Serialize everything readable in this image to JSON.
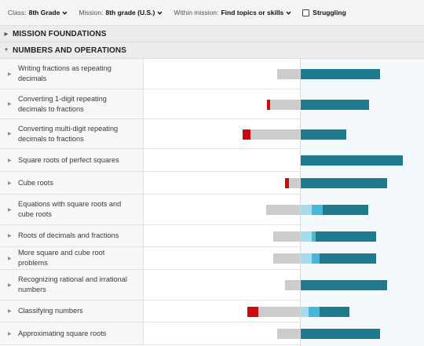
{
  "filters": {
    "class_label": "Class:",
    "class_value": "8th Grade",
    "mission_label": "Mission:",
    "mission_value": "8th grade (U.S.)",
    "within_label": "Within mission:",
    "within_value": "Find topics or skills",
    "struggling_label": "Struggling"
  },
  "sections": [
    {
      "label": "MISSION FOUNDATIONS",
      "expanded": false
    },
    {
      "label": "NUMBERS AND OPERATIONS",
      "expanded": true
    }
  ],
  "colors": {
    "struggling": "#cc0c0c",
    "not_started": "#cccccc",
    "practiced": "#a3dcec",
    "level_two": "#46b8db",
    "mastered": "#1e7a8c"
  },
  "rows": [
    {
      "label": "Writing fractions as repeating decimals",
      "red": 0,
      "gray": 29,
      "light": 0,
      "mid": 0,
      "dark": 101
    },
    {
      "label": "Converting 1-digit repeating decimals to fractions",
      "red": 4,
      "gray": 38,
      "light": 0,
      "mid": 0,
      "dark": 87
    },
    {
      "label": "Converting multi-digit repeating decimals to fractions",
      "red": 10,
      "gray": 63,
      "light": 0,
      "mid": 0,
      "dark": 58
    },
    {
      "label": "Square roots of perfect squares",
      "red": 0,
      "gray": 0,
      "light": 0,
      "mid": 0,
      "dark": 130
    },
    {
      "label": "Cube roots",
      "red": 5,
      "gray": 14,
      "light": 0,
      "mid": 0,
      "dark": 110
    },
    {
      "label": "Equations with square roots and cube roots",
      "red": 0,
      "gray": 43,
      "light": 14,
      "mid": 14,
      "dark": 58
    },
    {
      "label": "Roots of decimals and fractions",
      "red": 0,
      "gray": 34,
      "light": 14,
      "mid": 5,
      "dark": 77
    },
    {
      "label": "More square and cube root problems",
      "red": 0,
      "gray": 34,
      "light": 14,
      "mid": 10,
      "dark": 72
    },
    {
      "label": "Recognizing rational and irrational numbers",
      "red": 0,
      "gray": 19,
      "light": 0,
      "mid": 0,
      "dark": 110
    },
    {
      "label": "Classifying numbers",
      "red": 14,
      "gray": 53,
      "light": 10,
      "mid": 14,
      "dark": 38
    },
    {
      "label": "Approximating square roots",
      "red": 0,
      "gray": 29,
      "light": 0,
      "mid": 0,
      "dark": 101
    }
  ]
}
